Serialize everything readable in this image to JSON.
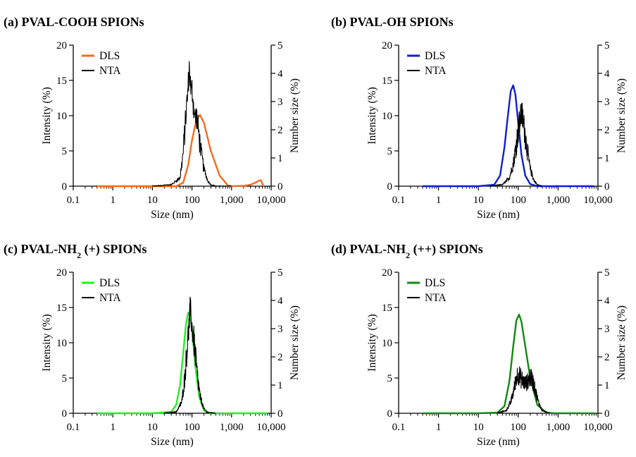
{
  "chart_data": [
    {
      "type": "line",
      "title_prefix": "(a) PVAL-COOH SPIONs",
      "title_sub": "",
      "title_suffix": "",
      "xlabel": "Size (nm)",
      "ylabel": "Intensity (%)",
      "y2label": "Number size (%)",
      "xscale": "log",
      "xlim": [
        0.1,
        10000
      ],
      "xticks": [
        "0.1",
        "1",
        "10",
        "100",
        "1,000",
        "10,000"
      ],
      "ylim": [
        0,
        20
      ],
      "yticks": [
        "0",
        "5",
        "10",
        "15",
        "20"
      ],
      "y2lim": [
        0,
        5
      ],
      "y2ticks": [
        "0",
        "1",
        "2",
        "3",
        "4",
        "5"
      ],
      "legend_position": "top-left",
      "series": [
        {
          "name": "DLS",
          "axis": "left",
          "color": "#f26b1d",
          "x": [
            0.4,
            10,
            40,
            60,
            80,
            100,
            130,
            160,
            200,
            300,
            500,
            800,
            1000,
            2000,
            3000,
            4000,
            5000,
            5600,
            6000,
            6500
          ],
          "y": [
            0,
            0,
            0,
            0.5,
            3,
            6.5,
            9.5,
            10.1,
            9,
            5,
            1.5,
            0.1,
            0,
            0.05,
            0.2,
            0.5,
            0.8,
            0.8,
            0.3,
            0
          ]
        },
        {
          "name": "NTA",
          "axis": "right",
          "color": "#000000",
          "noisy": true,
          "x": [
            10,
            30,
            50,
            60,
            70,
            80,
            85,
            90,
            95,
            100,
            110,
            120,
            130,
            150,
            170,
            200,
            250,
            300,
            400,
            1000
          ],
          "y": [
            0,
            0.05,
            0.3,
            1.2,
            2.5,
            3.5,
            4.2,
            3.8,
            3.2,
            3.5,
            2.8,
            2.4,
            2.5,
            1.8,
            1.2,
            0.6,
            0.2,
            0.05,
            0,
            0
          ]
        }
      ]
    },
    {
      "type": "line",
      "title_prefix": "(b) PVAL-OH SPIONs",
      "title_sub": "",
      "title_suffix": "",
      "xlabel": "Size (nm)",
      "ylabel": "Intensity (%)",
      "y2label": "Number size (%)",
      "xscale": "log",
      "xlim": [
        0.1,
        10000
      ],
      "xticks": [
        "0.1",
        "1",
        "10",
        "100",
        "1,000",
        "10,000"
      ],
      "ylim": [
        0,
        20
      ],
      "yticks": [
        "0",
        "5",
        "10",
        "15",
        "20"
      ],
      "y2lim": [
        0,
        5
      ],
      "y2ticks": [
        "0",
        "1",
        "2",
        "3",
        "4",
        "5"
      ],
      "legend_position": "top-left",
      "series": [
        {
          "name": "DLS",
          "axis": "left",
          "color": "#0f1fcc",
          "x": [
            0.4,
            10,
            25,
            35,
            45,
            55,
            65,
            75,
            85,
            100,
            120,
            150,
            200,
            300,
            1000,
            8000
          ],
          "y": [
            0,
            0,
            0.2,
            1.5,
            5.5,
            10,
            13.5,
            14.3,
            13,
            9,
            4.5,
            1.5,
            0.3,
            0,
            0,
            0
          ]
        },
        {
          "name": "NTA",
          "axis": "right",
          "color": "#000000",
          "noisy": true,
          "x": [
            20,
            40,
            60,
            75,
            90,
            100,
            110,
            120,
            130,
            140,
            160,
            180,
            200,
            250,
            300,
            400
          ],
          "y": [
            0,
            0.05,
            0.3,
            0.8,
            1.5,
            2.0,
            2.3,
            2.6,
            2.4,
            2.1,
            1.5,
            1.0,
            0.6,
            0.2,
            0.05,
            0
          ]
        }
      ]
    },
    {
      "type": "line",
      "title_prefix": "(c) PVAL-NH",
      "title_sub": "2",
      "title_suffix": " (+) SPIONs",
      "xlabel": "Size (nm)",
      "ylabel": "Intensity (%)",
      "y2label": "Number size (%)",
      "xscale": "log",
      "xlim": [
        0.1,
        10000
      ],
      "xticks": [
        "0.1",
        "1",
        "10",
        "100",
        "1,000",
        "10,000"
      ],
      "ylim": [
        0,
        20
      ],
      "yticks": [
        "0",
        "5",
        "10",
        "15",
        "20"
      ],
      "y2lim": [
        0,
        5
      ],
      "y2ticks": [
        "0",
        "1",
        "2",
        "3",
        "4",
        "5"
      ],
      "legend_position": "top-left",
      "series": [
        {
          "name": "DLS",
          "axis": "left",
          "color": "#22ee22",
          "x": [
            0.4,
            10,
            30,
            40,
            50,
            60,
            70,
            80,
            90,
            100,
            120,
            150,
            200,
            300,
            1000,
            8000
          ],
          "y": [
            0,
            0,
            0.2,
            1.2,
            4,
            8.5,
            12.5,
            14.3,
            14,
            12,
            7,
            2.5,
            0.4,
            0,
            0,
            0
          ]
        },
        {
          "name": "NTA",
          "axis": "right",
          "color": "#000000",
          "noisy": true,
          "x": [
            20,
            40,
            55,
            65,
            75,
            85,
            90,
            95,
            100,
            110,
            120,
            140,
            160,
            200,
            250,
            400
          ],
          "y": [
            0,
            0.05,
            0.4,
            1.2,
            2.3,
            3.2,
            3.7,
            3.4,
            3.0,
            2.7,
            2.1,
            1.2,
            0.6,
            0.15,
            0.03,
            0
          ]
        }
      ]
    },
    {
      "type": "line",
      "title_prefix": "(d) PVAL-NH",
      "title_sub": "2",
      "title_suffix": " (++) SPIONs",
      "xlabel": "Size (nm)",
      "ylabel": "Intensity (%)",
      "y2label": "Number size (%)",
      "xscale": "log",
      "xlim": [
        0.1,
        10000
      ],
      "xticks": [
        "0.1",
        "1",
        "10",
        "100",
        "1,000",
        "10,000"
      ],
      "ylim": [
        0,
        20
      ],
      "yticks": [
        "0",
        "5",
        "10",
        "15",
        "20"
      ],
      "y2lim": [
        0,
        5
      ],
      "y2ticks": [
        "0",
        "1",
        "2",
        "3",
        "4",
        "5"
      ],
      "legend_position": "top-left",
      "series": [
        {
          "name": "DLS",
          "axis": "left",
          "color": "#118811",
          "x": [
            0.4,
            10,
            30,
            45,
            60,
            75,
            90,
            105,
            120,
            150,
            200,
            300,
            500,
            800,
            1000,
            8000
          ],
          "y": [
            0,
            0,
            0.1,
            1,
            4.5,
            9.5,
            13.2,
            14,
            13,
            9.5,
            5,
            1.2,
            0.1,
            0,
            0,
            0
          ]
        },
        {
          "name": "NTA",
          "axis": "right",
          "color": "#000000",
          "noisy": true,
          "x": [
            30,
            50,
            65,
            80,
            90,
            100,
            115,
            130,
            150,
            170,
            200,
            230,
            270,
            320,
            400,
            600
          ],
          "y": [
            0,
            0.1,
            0.4,
            0.9,
            1.3,
            1.4,
            1.25,
            1.15,
            1.05,
            1.1,
            1.3,
            1.15,
            0.8,
            0.4,
            0.1,
            0
          ]
        }
      ]
    }
  ]
}
